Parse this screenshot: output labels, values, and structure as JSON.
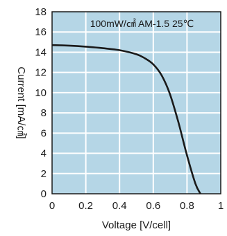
{
  "chart_data": {
    "type": "line",
    "title": "100mW/㎠  AM-1.5  25℃",
    "xlabel": "Voltage [V/cell]",
    "ylabel": "Current [mA/㎠]",
    "xlim": [
      0,
      1
    ],
    "ylim": [
      0,
      18
    ],
    "xticks": [
      "0",
      "0.2",
      "0.4",
      "0.6",
      "0.8",
      "1"
    ],
    "yticks": [
      "0",
      "2",
      "4",
      "6",
      "8",
      "10",
      "12",
      "14",
      "16",
      "18"
    ],
    "grid": true,
    "series": [
      {
        "x": [
          0,
          0.1,
          0.2,
          0.3,
          0.4,
          0.5,
          0.55,
          0.6,
          0.65,
          0.7,
          0.75,
          0.8,
          0.85,
          0.88
        ],
        "y": [
          14.7,
          14.65,
          14.55,
          14.4,
          14.2,
          13.8,
          13.4,
          12.8,
          11.7,
          9.8,
          7.0,
          3.8,
          1.0,
          0
        ]
      }
    ],
    "colors": {
      "plot_background": "#b5d6e6",
      "grid": "#ffffff",
      "curve": "#1a1a1a",
      "axis": "#1a1a1a"
    }
  }
}
